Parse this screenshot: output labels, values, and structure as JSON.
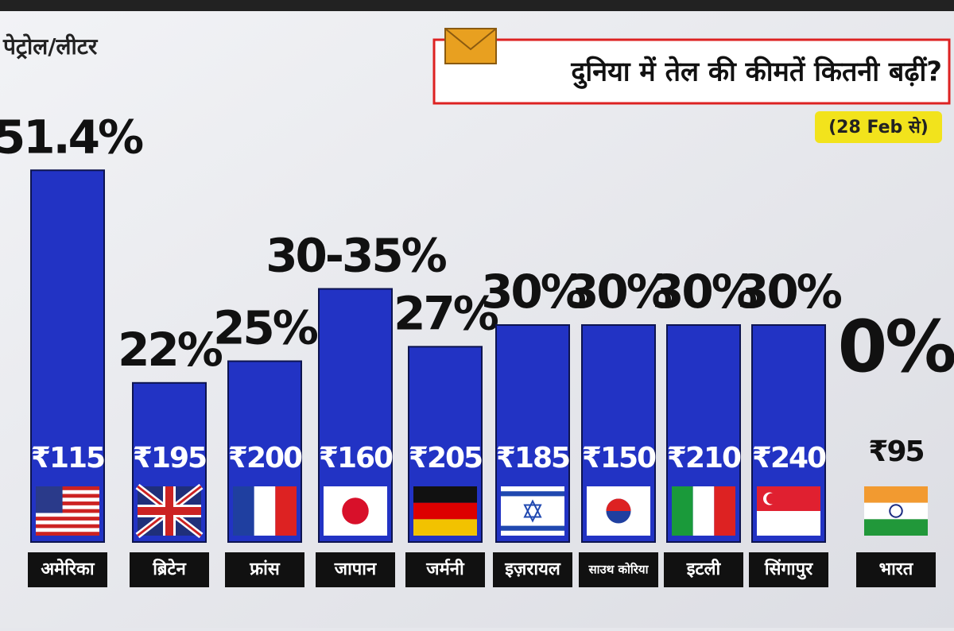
{
  "chart_data": {
    "type": "bar",
    "title": "दुनिया में तेल की कीमतें कितनी बढ़ीं?",
    "subtitle": "(28 Feb से)",
    "unit_label": "पेट्रोल/लीटर",
    "categories": [
      "अमेरिका",
      "ब्रिटेन",
      "फ्रांस",
      "जापान",
      "जर्मनी",
      "इज़रायल",
      "साउथ कोरिया",
      "इटली",
      "सिंगापुर",
      "भारत"
    ],
    "values": [
      51.4,
      22,
      25,
      35,
      27,
      30,
      30,
      30,
      30,
      0
    ],
    "value_labels": [
      "51.4%",
      "22%",
      "25%",
      "30-35%",
      "27%",
      "30%",
      "30%",
      "30%",
      "30%",
      "0%"
    ],
    "price_labels": [
      "₹115",
      "₹195",
      "₹200",
      "₹160",
      "₹205",
      "₹185",
      "₹150",
      "₹210",
      "₹240",
      "₹95"
    ],
    "color": "#2233c4"
  }
}
